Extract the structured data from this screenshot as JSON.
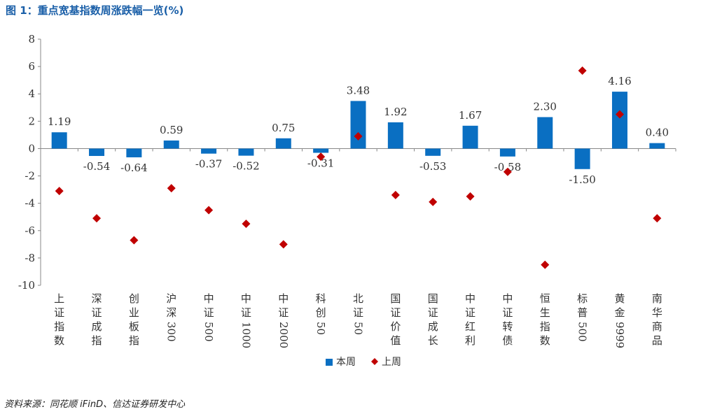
{
  "figure": {
    "title": "图 1：重点宽基指数周涨跌幅一览(%)",
    "source": "资料来源：同花顺 iFinD、信达证券研发中心"
  },
  "chart_data": {
    "type": "bar",
    "title": "",
    "xlabel": "",
    "ylabel": "",
    "ylim": [
      -10,
      8
    ],
    "yticks": [
      "8",
      "6",
      "4",
      "2",
      "0",
      "-2",
      "-4",
      "-6",
      "-8",
      "-10"
    ],
    "grid": false,
    "legend_position": "bottom",
    "categories": [
      "上证指数",
      "深证成指",
      "创业板指",
      "沪深300",
      "中证500",
      "中证1000",
      "中证2000",
      "科创50",
      "北证50",
      "国证价值",
      "国证成长",
      "中证红利",
      "中证转债",
      "恒生指数",
      "标普500",
      "黄金9999",
      "南华商品"
    ],
    "series": [
      {
        "name": "本周",
        "kind": "bar",
        "color": "#0a6fc2",
        "values": [
          1.19,
          -0.54,
          -0.64,
          0.59,
          -0.37,
          -0.52,
          0.75,
          -0.31,
          3.48,
          1.92,
          -0.53,
          1.67,
          -0.58,
          2.3,
          -1.5,
          4.16,
          0.4
        ],
        "labels": [
          "1.19",
          "-0.54",
          "-0.64",
          "0.59",
          "-0.37",
          "-0.52",
          "0.75",
          "-0.31",
          "3.48",
          "1.92",
          "-0.53",
          "1.67",
          "-0.58",
          "2.30",
          "-1.50",
          "4.16",
          "0.40"
        ]
      },
      {
        "name": "上周",
        "kind": "scatter",
        "marker": "diamond",
        "color": "#c00000",
        "values": [
          -3.1,
          -5.1,
          -6.7,
          -2.9,
          -4.5,
          -5.5,
          -7.0,
          -0.6,
          0.9,
          -3.4,
          -3.9,
          -3.5,
          -1.7,
          -8.5,
          5.7,
          2.5,
          -5.1
        ]
      }
    ]
  }
}
